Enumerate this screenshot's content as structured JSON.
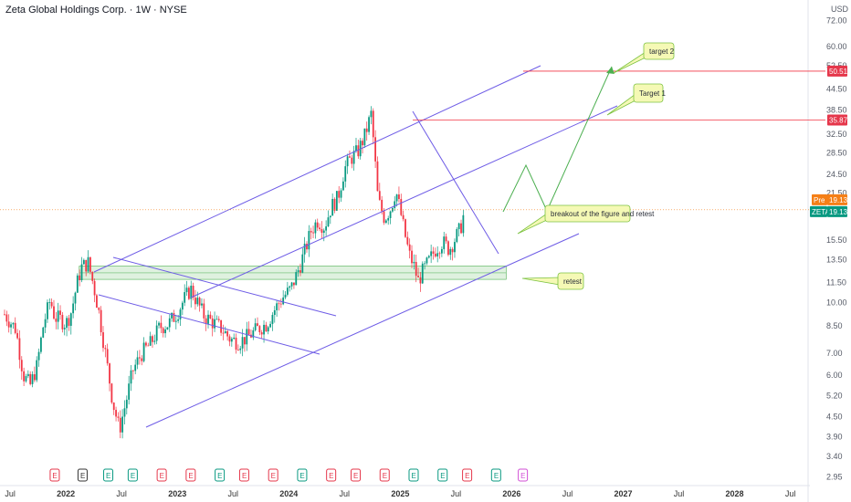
{
  "header": {
    "title": "Zeta Global Holdings Corp. · 1W · NYSE"
  },
  "price_axis": {
    "currency": "USD",
    "ticks": [
      "72.00",
      "60.00",
      "52.50",
      "44.50",
      "38.50",
      "32.50",
      "28.50",
      "24.50",
      "21.50",
      "15.50",
      "13.50",
      "11.50",
      "10.00",
      "8.50",
      "7.00",
      "6.00",
      "5.20",
      "4.50",
      "3.90",
      "3.40",
      "2.95"
    ]
  },
  "tags": {
    "target2": {
      "label": "50.51",
      "color": "#e5374b"
    },
    "target1": {
      "label": "35.87",
      "color": "#e5374b"
    },
    "pre": {
      "name": "Pre",
      "value": "19.13",
      "color": "#f57f17"
    },
    "last": {
      "name": "ZETA",
      "value": "19.13",
      "color": "#089981"
    }
  },
  "callouts": {
    "target2": "target 2",
    "target1": "Target 1",
    "breakout": "breakout of the figure and retest",
    "retest": "retest"
  },
  "time_axis": {
    "labels": [
      {
        "text": "Jul",
        "major": false
      },
      {
        "text": "2022",
        "major": true
      },
      {
        "text": "Jul",
        "major": false
      },
      {
        "text": "2023",
        "major": true
      },
      {
        "text": "Jul",
        "major": false
      },
      {
        "text": "2024",
        "major": true
      },
      {
        "text": "Jul",
        "major": false
      },
      {
        "text": "2025",
        "major": true
      },
      {
        "text": "Jul",
        "major": false
      },
      {
        "text": "2026",
        "major": true
      },
      {
        "text": "Jul",
        "major": false
      },
      {
        "text": "2027",
        "major": true
      },
      {
        "text": "Jul",
        "major": false
      },
      {
        "text": "2028",
        "major": true
      },
      {
        "text": "Jul",
        "major": false
      }
    ]
  },
  "events": [
    {
      "t": 2021.9,
      "type": "E",
      "color": "#e5374b"
    },
    {
      "t": 2022.15,
      "type": "E",
      "color": "#333333"
    },
    {
      "t": 2022.38,
      "type": "E",
      "color": "#089981"
    },
    {
      "t": 2022.6,
      "type": "E",
      "color": "#089981"
    },
    {
      "t": 2022.86,
      "type": "E",
      "color": "#e5374b"
    },
    {
      "t": 2023.12,
      "type": "E",
      "color": "#e5374b"
    },
    {
      "t": 2023.38,
      "type": "E",
      "color": "#089981"
    },
    {
      "t": 2023.6,
      "type": "E",
      "color": "#e5374b"
    },
    {
      "t": 2023.86,
      "type": "E",
      "color": "#e5374b"
    },
    {
      "t": 2024.12,
      "type": "E",
      "color": "#089981"
    },
    {
      "t": 2024.38,
      "type": "E",
      "color": "#e5374b"
    },
    {
      "t": 2024.6,
      "type": "E",
      "color": "#e5374b"
    },
    {
      "t": 2024.86,
      "type": "E",
      "color": "#e5374b"
    },
    {
      "t": 2025.12,
      "type": "E",
      "color": "#089981"
    },
    {
      "t": 2025.38,
      "type": "E",
      "color": "#089981"
    },
    {
      "t": 2025.6,
      "type": "E",
      "color": "#e5374b"
    },
    {
      "t": 2025.86,
      "type": "E",
      "color": "#089981"
    },
    {
      "t": 2026.1,
      "type": "E",
      "color": "#d24fd6"
    }
  ],
  "chart_data": {
    "type": "candlestick",
    "scale": "log",
    "up_color": "#089981",
    "down_color": "#f23645",
    "ylim": [
      2.9,
      76
    ],
    "xlim": [
      2021.45,
      2028.7
    ],
    "price_path": [
      [
        2021.45,
        9.2
      ],
      [
        2021.55,
        8.3
      ],
      [
        2021.62,
        6.0
      ],
      [
        2021.68,
        5.6
      ],
      [
        2021.74,
        6.4
      ],
      [
        2021.8,
        8.6
      ],
      [
        2021.86,
        10.2
      ],
      [
        2021.9,
        9.0
      ],
      [
        2021.95,
        8.9
      ],
      [
        2022.0,
        8.6
      ],
      [
        2022.05,
        9.4
      ],
      [
        2022.1,
        11.4
      ],
      [
        2022.14,
        12.8
      ],
      [
        2022.2,
        13.2
      ],
      [
        2022.25,
        11.2
      ],
      [
        2022.3,
        9.2
      ],
      [
        2022.36,
        6.8
      ],
      [
        2022.42,
        5.0
      ],
      [
        2022.48,
        4.1
      ],
      [
        2022.54,
        5.0
      ],
      [
        2022.6,
        6.2
      ],
      [
        2022.68,
        7.0
      ],
      [
        2022.76,
        7.5
      ],
      [
        2022.84,
        8.4
      ],
      [
        2022.92,
        8.6
      ],
      [
        2023.0,
        9.3
      ],
      [
        2023.06,
        10.2
      ],
      [
        2023.12,
        11.0
      ],
      [
        2023.18,
        10.0
      ],
      [
        2023.24,
        9.1
      ],
      [
        2023.32,
        8.7
      ],
      [
        2023.4,
        8.3
      ],
      [
        2023.48,
        7.7
      ],
      [
        2023.56,
        7.6
      ],
      [
        2023.64,
        7.9
      ],
      [
        2023.72,
        8.3
      ],
      [
        2023.8,
        8.6
      ],
      [
        2023.88,
        9.6
      ],
      [
        2023.95,
        10.4
      ],
      [
        2024.02,
        11.0
      ],
      [
        2024.08,
        12.4
      ],
      [
        2024.14,
        14.2
      ],
      [
        2024.2,
        16.5
      ],
      [
        2024.26,
        17.8
      ],
      [
        2024.32,
        17.0
      ],
      [
        2024.38,
        19.5
      ],
      [
        2024.44,
        20.8
      ],
      [
        2024.5,
        25.5
      ],
      [
        2024.56,
        27.5
      ],
      [
        2024.62,
        28.8
      ],
      [
        2024.68,
        32.0
      ],
      [
        2024.74,
        37.5
      ],
      [
        2024.77,
        28.0
      ],
      [
        2024.8,
        20.5
      ],
      [
        2024.86,
        18.0
      ],
      [
        2024.92,
        19.5
      ],
      [
        2024.96,
        22.0
      ],
      [
        2025.0,
        19.0
      ],
      [
        2025.04,
        16.2
      ],
      [
        2025.08,
        14.0
      ],
      [
        2025.12,
        13.0
      ],
      [
        2025.16,
        11.6
      ],
      [
        2025.2,
        12.4
      ],
      [
        2025.26,
        13.4
      ],
      [
        2025.32,
        14.6
      ],
      [
        2025.38,
        15.3
      ],
      [
        2025.44,
        14.5
      ],
      [
        2025.5,
        15.8
      ],
      [
        2025.54,
        16.8
      ],
      [
        2025.58,
        19.13
      ]
    ]
  }
}
